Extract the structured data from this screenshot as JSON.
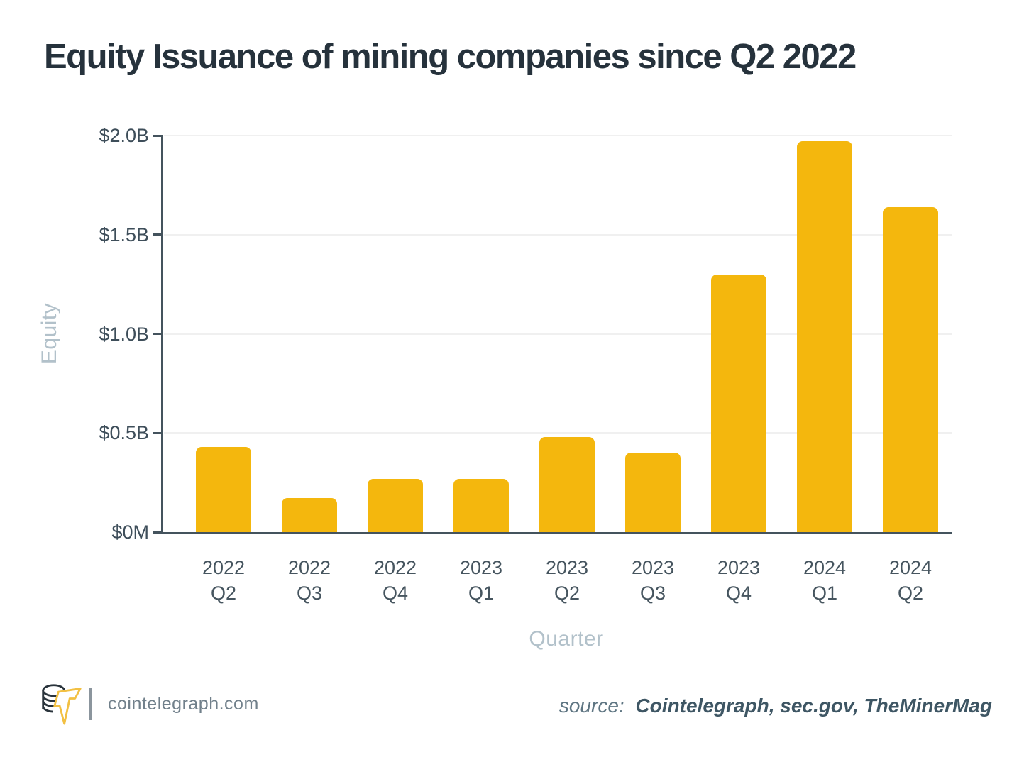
{
  "page": {
    "background": "#ffffff"
  },
  "chart_data": {
    "type": "bar",
    "title": "Equity Issuance of mining companies since Q2 2022",
    "categories": [
      "2022 Q2",
      "2022 Q3",
      "2022 Q4",
      "2023 Q1",
      "2023 Q2",
      "2023 Q3",
      "2023 Q4",
      "2024 Q1",
      "2024 Q2"
    ],
    "values": [
      0.43,
      0.17,
      0.27,
      0.27,
      0.48,
      0.4,
      1.3,
      1.97,
      1.64
    ],
    "unit": "billions USD",
    "xlabel": "Quarter",
    "ylabel": "Equity",
    "ylim": [
      0,
      2.0
    ],
    "yticks": [
      {
        "value": 0,
        "label": "$0M"
      },
      {
        "value": 0.5,
        "label": "$0.5B"
      },
      {
        "value": 1.0,
        "label": "$1.0B"
      },
      {
        "value": 1.5,
        "label": "$1.5B"
      },
      {
        "value": 2.0,
        "label": "$2.0B"
      }
    ],
    "grid": "horizontal",
    "legend": "none",
    "bar_color": "#F4B70D"
  },
  "colors": {
    "bar": "#F4B70D",
    "title_text": "#26323C",
    "axis": "#44535D",
    "tick_label": "#3E4E5A",
    "axis_title": "#B2C1CA",
    "gridline": "#F0F0F0",
    "logo_yellow": "#F2C043",
    "logo_dark": "#2A343C"
  },
  "footer": {
    "site": "cointelegraph.com",
    "source_label": "source:",
    "source_value": "Cointelegraph, sec.gov, TheMinerMag",
    "logo": "cointelegraph-logo"
  }
}
